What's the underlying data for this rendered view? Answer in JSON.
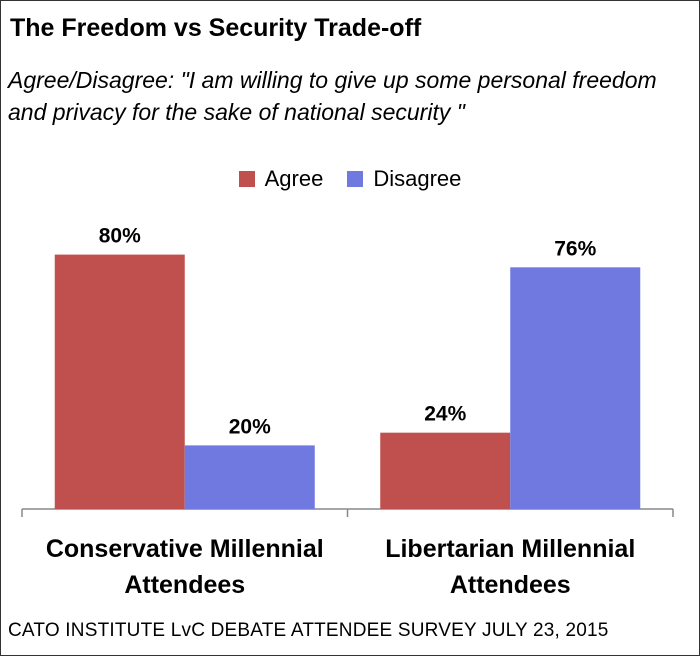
{
  "title": "The Freedom vs Security Trade-off",
  "subtitle": "Agree/Disagree: \"I am willing to give up some personal freedom and privacy for the sake of national security \"",
  "source": "CATO INSTITUTE LvC DEBATE ATTENDEE SURVEY JULY 23, 2015",
  "colors": {
    "agree": "#c0504d",
    "disagree": "#6f79df"
  },
  "chart_data": {
    "type": "bar",
    "categories": [
      [
        "Conservative Millennial",
        "Attendees"
      ],
      [
        "Libertarian Millennial",
        "Attendees"
      ]
    ],
    "series": [
      {
        "name": "Agree",
        "values": [
          80,
          24
        ],
        "labels": [
          "80%",
          "24%"
        ]
      },
      {
        "name": "Disagree",
        "values": [
          20,
          76
        ],
        "labels": [
          "20%",
          "76%"
        ]
      }
    ],
    "legend_position": "top-center",
    "grid": false,
    "ylim": [
      0,
      100
    ]
  }
}
